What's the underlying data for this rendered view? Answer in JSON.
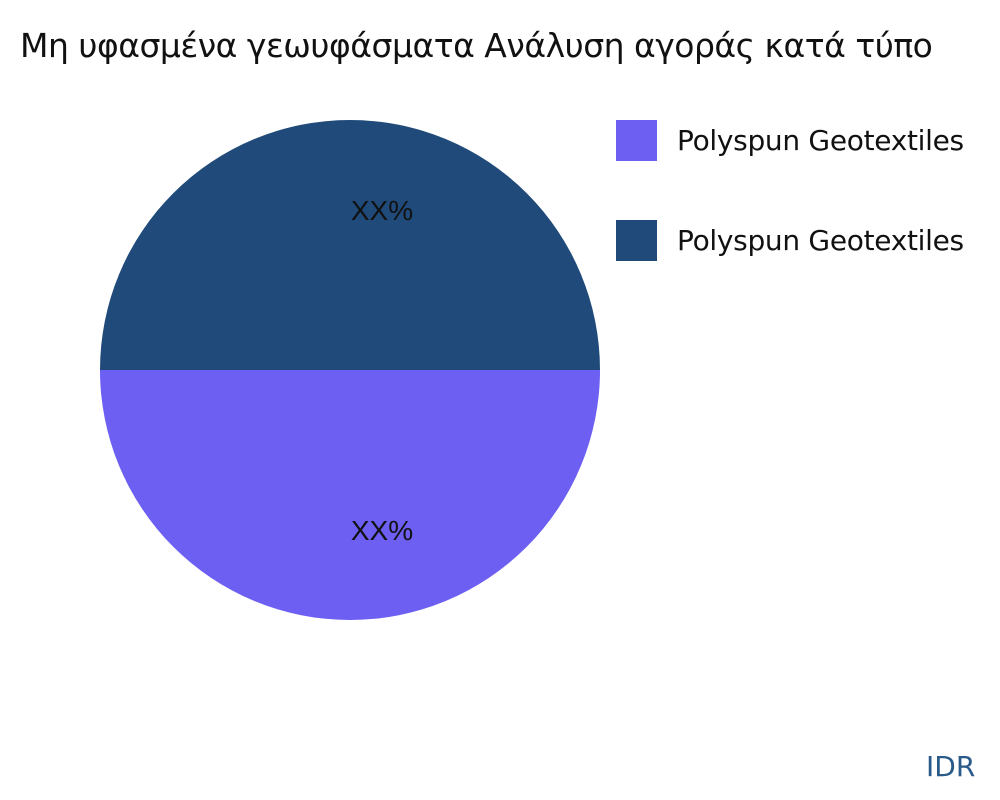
{
  "chart_data": {
    "type": "pie",
    "title": "Μη υφασμένα γεωυφάσματα Ανάλυση αγοράς κατά τύπο",
    "legend_position": "right",
    "slices": [
      {
        "name": "Polyspun Geotextiles",
        "value": 50,
        "label": "XX%",
        "color": "#6c5ff2"
      },
      {
        "name": "Polyspun Geotextiles",
        "value": 50,
        "label": "XX%",
        "color": "#1f4a79"
      }
    ]
  },
  "watermark": "IDR"
}
